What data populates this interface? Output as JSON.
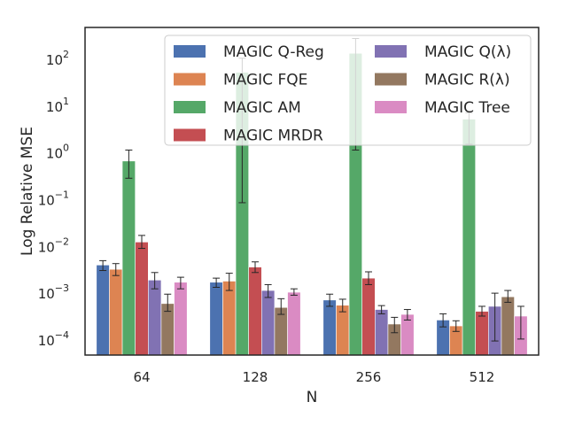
{
  "chart_data": {
    "type": "bar",
    "scale": "log",
    "xlabel": "N",
    "ylabel": "Log Relative MSE",
    "ylim": [
      5e-05,
      500
    ],
    "categories": [
      "64",
      "128",
      "256",
      "512"
    ],
    "yticks": [
      {
        "base": "10",
        "exp": "2",
        "value": 100
      },
      {
        "base": "10",
        "exp": "1",
        "value": 10
      },
      {
        "base": "10",
        "exp": "0",
        "value": 1
      },
      {
        "base": "10",
        "exp": "−1",
        "value": 0.1
      },
      {
        "base": "10",
        "exp": "−2",
        "value": 0.01
      },
      {
        "base": "10",
        "exp": "−3",
        "value": 0.001
      },
      {
        "base": "10",
        "exp": "−4",
        "value": 0.0001
      }
    ],
    "legend_placement": "top-right",
    "series": [
      {
        "name": "MAGIC Q-Reg",
        "color": "#4c72b0",
        "values": [
          0.0042,
          0.0018,
          0.00075,
          0.00028
        ],
        "err_low": [
          0.0032,
          0.0014,
          0.00055,
          0.0002
        ],
        "err_high": [
          0.0052,
          0.0022,
          0.001,
          0.00038
        ]
      },
      {
        "name": "MAGIC FQE",
        "color": "#dd8452",
        "values": [
          0.0034,
          0.0019,
          0.00058,
          0.00021
        ],
        "err_low": [
          0.0025,
          0.0012,
          0.00042,
          0.00016
        ],
        "err_high": [
          0.0045,
          0.0028,
          0.00078,
          0.00027
        ]
      },
      {
        "name": "MAGIC AM",
        "color": "#55a868",
        "values": [
          0.7,
          55,
          140,
          5.5
        ],
        "err_low": [
          0.3,
          0.09,
          1.2,
          1.6
        ],
        "err_high": [
          1.2,
          110,
          290,
          7.5
        ]
      },
      {
        "name": "MAGIC MRDR",
        "color": "#c44e52",
        "values": [
          0.013,
          0.0038,
          0.0022,
          0.00043
        ],
        "err_low": [
          0.0095,
          0.0029,
          0.0016,
          0.00034
        ],
        "err_high": [
          0.018,
          0.0049,
          0.003,
          0.00055
        ]
      },
      {
        "name": "MAGIC Q(λ)",
        "color": "#8172b3",
        "values": [
          0.002,
          0.0012,
          0.00047,
          0.00055
        ],
        "err_low": [
          0.0013,
          0.00085,
          0.00038,
          0.0001
        ],
        "err_high": [
          0.0029,
          0.0016,
          0.00057,
          0.00105
        ]
      },
      {
        "name": "MAGIC R(λ)",
        "color": "#937860",
        "values": [
          0.00063,
          0.00052,
          0.00023,
          0.00088
        ],
        "err_low": [
          0.00043,
          0.00037,
          0.00015,
          0.00067
        ],
        "err_high": [
          0.001,
          0.0008,
          0.00032,
          0.0012
        ]
      },
      {
        "name": "MAGIC Tree",
        "color": "#da8bc3",
        "values": [
          0.0018,
          0.0011,
          0.00037,
          0.00034
        ],
        "err_low": [
          0.0013,
          0.00095,
          0.00028,
          0.00011
        ],
        "err_high": [
          0.0023,
          0.0013,
          0.00047,
          0.00055
        ]
      }
    ]
  }
}
